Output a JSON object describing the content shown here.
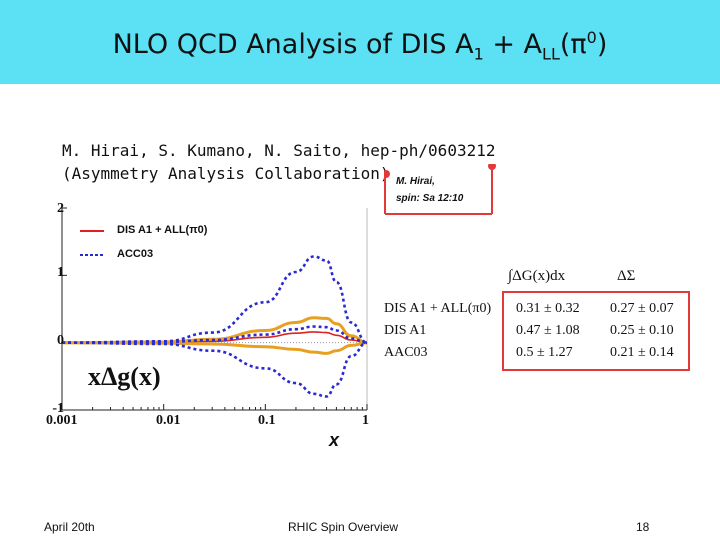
{
  "slide": {
    "title": "NLO QCD Analysis of DIS A",
    "title_sub": "1",
    "title_mid": " + A",
    "title_sub2": "LL",
    "title_end_open": "(π",
    "title_sup": "0",
    "title_end_close": ")",
    "authors": "M. Hirai, S. Kumano, N. Saito, hep-ph/0603212",
    "collaboration": "(Asymmetry Analysis Collaboration)",
    "note_line1": "M. Hirai,",
    "note_line2": "spin: Sa 12:10",
    "footer_left": "April 20th",
    "footer_center": "RHIC Spin Overview",
    "footer_right": "18"
  },
  "colors": {
    "title_bg": "#5ce0f4",
    "dis_all": "#e02020",
    "aac03": "#2a2ad0",
    "band": "#e8a020",
    "highlight_box": "#e23a3a"
  },
  "chart_data": {
    "type": "line",
    "xscale": "log",
    "xlim": [
      0.001,
      1
    ],
    "ylim": [
      -1,
      2
    ],
    "xticks": [
      "0.001",
      "0.01",
      "0.1",
      "1"
    ],
    "yticks": [
      "-1",
      "0",
      "1",
      "2"
    ],
    "xlabel": "x",
    "curve_label": "xΔg(x)",
    "legend": [
      {
        "name": "DIS A1 + ALL(π0)",
        "style": "solid",
        "color": "#e02020"
      },
      {
        "name": "ACC03",
        "style": "dashed",
        "color": "#2a2ad0"
      }
    ],
    "series": [
      {
        "name": "DIS A1 + ALL(π0) central",
        "style": "solid",
        "color": "#e02020",
        "x": [
          0.001,
          0.01,
          0.03,
          0.1,
          0.2,
          0.3,
          0.4,
          0.5,
          0.7,
          1.0
        ],
        "y": [
          0.0,
          0.0,
          0.02,
          0.08,
          0.14,
          0.16,
          0.15,
          0.11,
          0.04,
          0.0
        ]
      },
      {
        "name": "DIS A1 + ALL(π0) upper",
        "style": "band",
        "color": "#e8a020",
        "x": [
          0.001,
          0.01,
          0.03,
          0.1,
          0.2,
          0.3,
          0.4,
          0.5,
          0.7,
          1.0
        ],
        "y": [
          0.0,
          0.01,
          0.05,
          0.18,
          0.3,
          0.37,
          0.36,
          0.28,
          0.1,
          0.0
        ]
      },
      {
        "name": "DIS A1 + ALL(π0) lower",
        "style": "band",
        "color": "#e8a020",
        "x": [
          0.001,
          0.01,
          0.03,
          0.1,
          0.2,
          0.3,
          0.4,
          0.5,
          0.7,
          1.0
        ],
        "y": [
          0.0,
          -0.01,
          -0.02,
          -0.06,
          -0.1,
          -0.14,
          -0.16,
          -0.12,
          -0.04,
          0.0
        ]
      },
      {
        "name": "ACC03 central",
        "style": "dashed",
        "color": "#2a2ad0",
        "x": [
          0.001,
          0.01,
          0.03,
          0.1,
          0.2,
          0.3,
          0.4,
          0.5,
          0.7,
          1.0
        ],
        "y": [
          0.0,
          0.01,
          0.04,
          0.12,
          0.2,
          0.24,
          0.23,
          0.18,
          0.06,
          0.0
        ]
      },
      {
        "name": "ACC03 upper",
        "style": "dashed",
        "color": "#2a2ad0",
        "x": [
          0.001,
          0.01,
          0.03,
          0.1,
          0.2,
          0.3,
          0.4,
          0.5,
          0.7,
          1.0
        ],
        "y": [
          0.0,
          0.02,
          0.15,
          0.6,
          1.05,
          1.28,
          1.22,
          0.9,
          0.3,
          0.0
        ]
      },
      {
        "name": "ACC03 lower",
        "style": "dashed",
        "color": "#2a2ad0",
        "x": [
          0.001,
          0.01,
          0.03,
          0.1,
          0.2,
          0.3,
          0.4,
          0.5,
          0.7,
          1.0
        ],
        "y": [
          0.0,
          -0.02,
          -0.12,
          -0.38,
          -0.6,
          -0.76,
          -0.8,
          -0.62,
          -0.2,
          0.0
        ]
      }
    ]
  },
  "table": {
    "headers": [
      "∫ΔG(x)dx",
      "ΔΣ"
    ],
    "rows": [
      {
        "label": "DIS A1 + ALL(π0)",
        "dg": "0.31 ± 0.32",
        "dsigma": "0.27 ± 0.07"
      },
      {
        "label": "DIS A1",
        "dg": "0.47 ± 1.08",
        "dsigma": "0.25 ± 0.10"
      },
      {
        "label": "AAC03",
        "dg": "0.5 ± 1.27",
        "dsigma": "0.21 ± 0.14"
      }
    ]
  }
}
